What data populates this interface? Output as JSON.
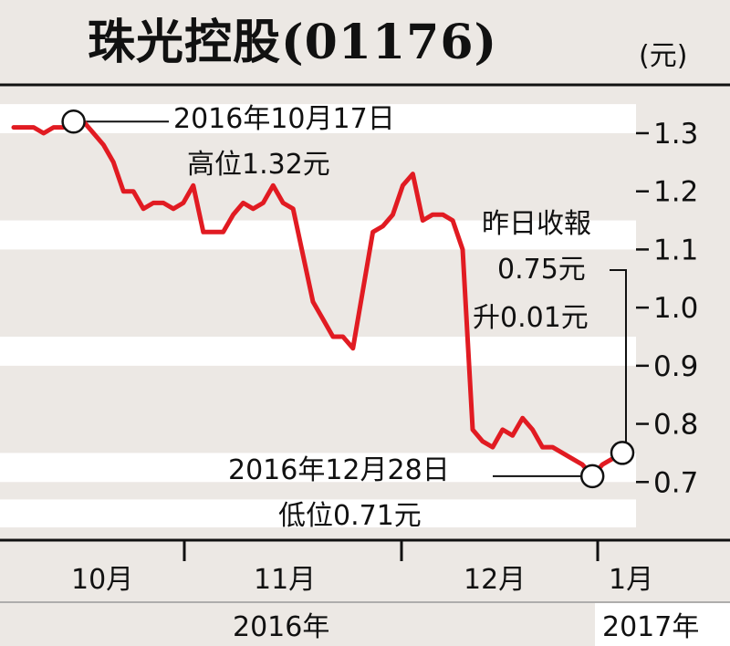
{
  "chart_data": {
    "type": "line",
    "title": "珠光控股(01176)",
    "unit": "(元)",
    "ylim": [
      0.6,
      1.38
    ],
    "yticks": [
      "1.3",
      "1.2",
      "1.1",
      "1.0",
      "0.9",
      "0.8",
      "0.7"
    ],
    "xlabels_month": [
      "10月",
      "11月",
      "12月",
      "1月"
    ],
    "xlabels_year": [
      "2016年",
      "2017年"
    ],
    "series": [
      {
        "color": "#e11b22",
        "values": [
          1.31,
          1.31,
          1.31,
          1.3,
          1.31,
          1.31,
          1.32,
          1.32,
          1.3,
          1.28,
          1.25,
          1.2,
          1.2,
          1.17,
          1.18,
          1.18,
          1.17,
          1.18,
          1.21,
          1.13,
          1.13,
          1.13,
          1.16,
          1.18,
          1.17,
          1.18,
          1.21,
          1.18,
          1.17,
          1.09,
          1.01,
          0.98,
          0.95,
          0.95,
          0.93,
          1.03,
          1.13,
          1.14,
          1.16,
          1.21,
          1.23,
          1.15,
          1.16,
          1.16,
          1.15,
          1.1,
          0.79,
          0.77,
          0.76,
          0.79,
          0.78,
          0.81,
          0.79,
          0.76,
          0.76,
          0.75,
          0.74,
          0.73,
          0.71,
          0.73,
          0.74,
          0.75
        ]
      }
    ],
    "annotations": {
      "high_date": "2016年10月17日",
      "high_value": "高位1.32元",
      "last_label": "昨日收報",
      "last_price": "0.75元",
      "last_change": "升0.01元",
      "low_date": "2016年12月28日",
      "low_value": "低位0.71元"
    }
  }
}
